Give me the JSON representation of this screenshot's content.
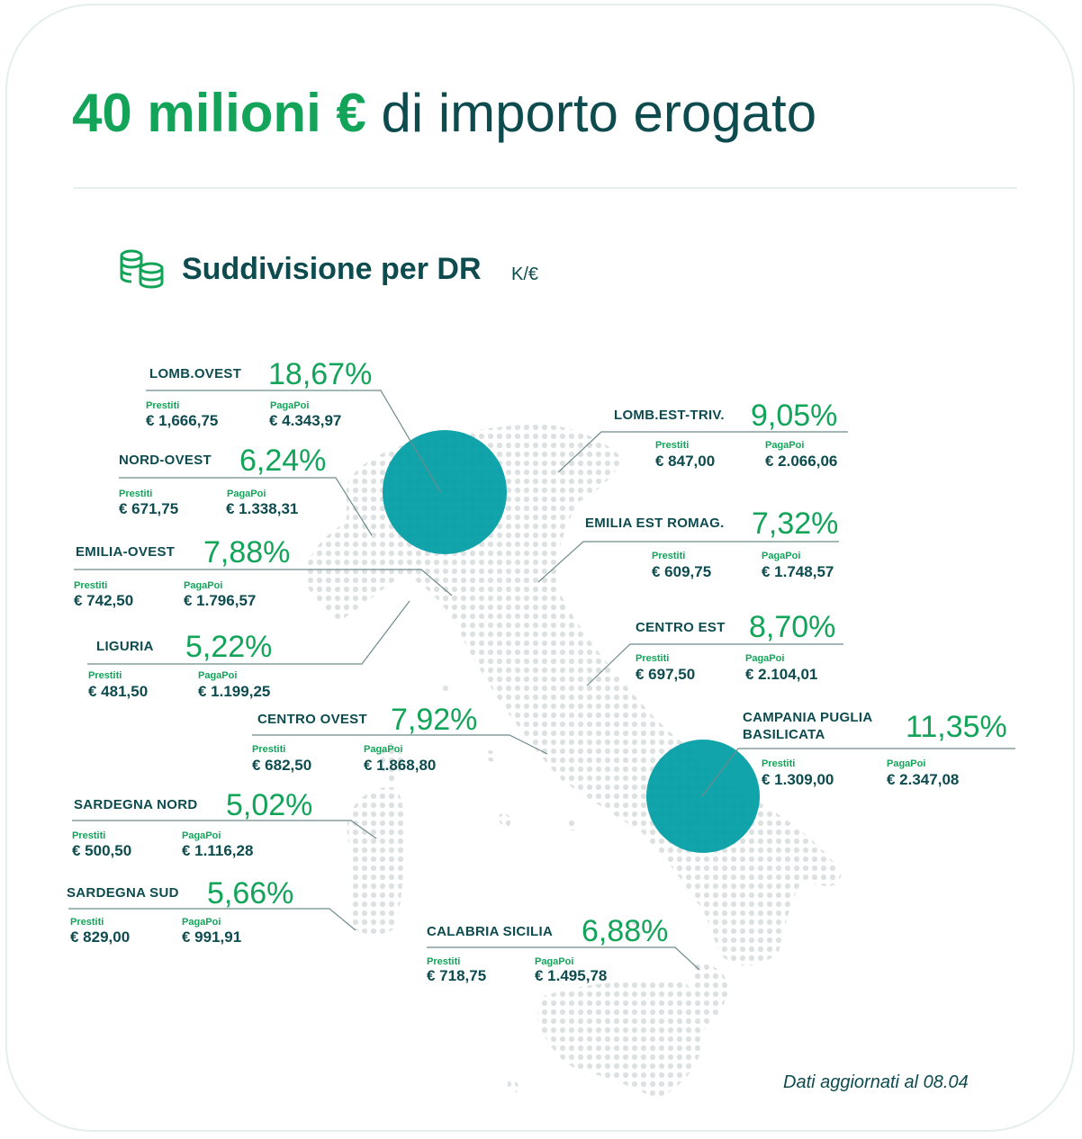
{
  "header": {
    "title_highlight": "40 milioni €",
    "title_rest": "di importo erogato"
  },
  "subtitle": {
    "text": "Suddivisione per DR",
    "unit": "K/€",
    "icon": "coins-stack-icon"
  },
  "labels": {
    "prestiti": "Prestiti",
    "pagapoi": "PagaPoi"
  },
  "regions": [
    {
      "id": "lomb-ovest",
      "name": "LOMB.OVEST",
      "percent": "18,67%",
      "prestiti": "€ 1,666,75",
      "pagapoi": "€ 4.343,97"
    },
    {
      "id": "nord-ovest",
      "name": "NORD-OVEST",
      "percent": "6,24%",
      "prestiti": "€ 671,75",
      "pagapoi": "€ 1.338,31"
    },
    {
      "id": "emilia-ovest",
      "name": "EMILIA-OVEST",
      "percent": "7,88%",
      "prestiti": "€ 742,50",
      "pagapoi": "€ 1.796,57"
    },
    {
      "id": "liguria",
      "name": "LIGURIA",
      "percent": "5,22%",
      "prestiti": "€ 481,50",
      "pagapoi": "€ 1.199,25"
    },
    {
      "id": "centro-ovest",
      "name": "CENTRO OVEST",
      "percent": "7,92%",
      "prestiti": "€ 682,50",
      "pagapoi": "€ 1.868,80"
    },
    {
      "id": "sardegna-nord",
      "name": "SARDEGNA NORD",
      "percent": "5,02%",
      "prestiti": "€ 500,50",
      "pagapoi": "€ 1.116,28"
    },
    {
      "id": "sardegna-sud",
      "name": "SARDEGNA SUD",
      "percent": "5,66%",
      "prestiti": "€ 829,00",
      "pagapoi": "€ 991,91"
    },
    {
      "id": "lomb-est-triv",
      "name": "LOMB.EST-TRIV.",
      "percent": "9,05%",
      "prestiti": "€ 847,00",
      "pagapoi": "€ 2.066,06"
    },
    {
      "id": "emilia-est-romag",
      "name": "EMILIA EST ROMAG.",
      "percent": "7,32%",
      "prestiti": "€ 609,75",
      "pagapoi": "€ 1.748,57"
    },
    {
      "id": "centro-est",
      "name": "CENTRO EST",
      "percent": "8,70%",
      "prestiti": "€ 697,50",
      "pagapoi": "€ 2.104,01"
    },
    {
      "id": "campania-puglia-basilicata",
      "name_line1": "CAMPANIA PUGLIA",
      "name_line2": "BASILICATA",
      "percent": "11,35%",
      "prestiti": "€ 1.309,00",
      "pagapoi": "€ 2.347,08"
    },
    {
      "id": "calabria-sicilia",
      "name": "CALABRIA SICILIA",
      "percent": "6,88%",
      "prestiti": "€ 718,75",
      "pagapoi": "€ 1.495,78"
    }
  ],
  "footer": "Dati aggiornati al 08.04",
  "colors": {
    "green": "#13a45a",
    "dark": "#0d4b4e",
    "teal": "#009da5",
    "dot": "#dde1e2",
    "border": "#e4efe9"
  }
}
